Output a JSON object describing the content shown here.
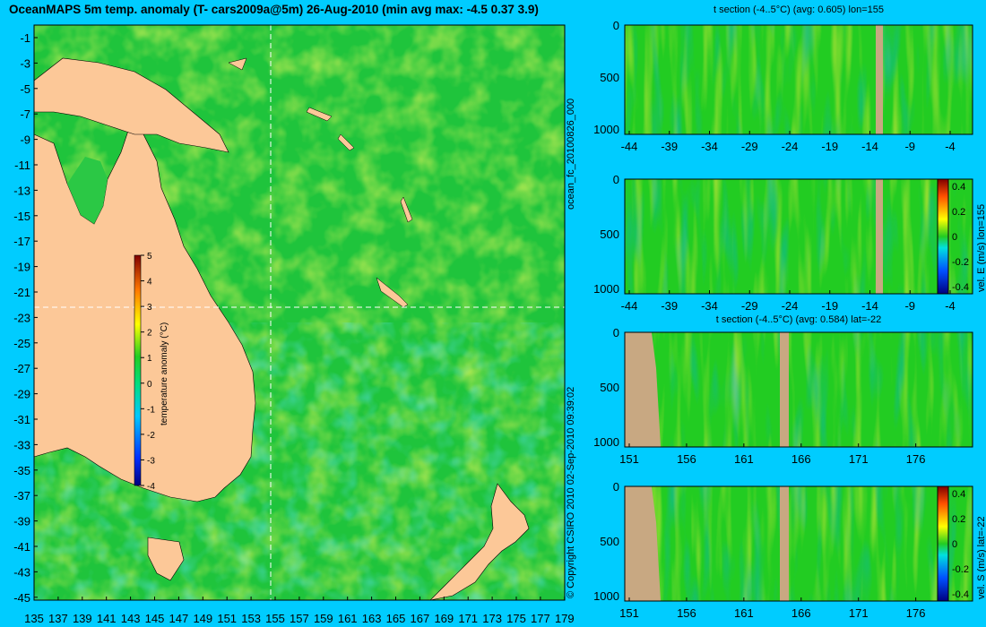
{
  "title": "OceanMAPS 5m temp. anomaly (T- cars2009a@5m) 26-Aug-2010 (min avg max: -4.5 0.37 3.9)",
  "map": {
    "lat_ticks": [
      "-1",
      "-3",
      "-5",
      "-7",
      "-9",
      "-11",
      "-13",
      "-15",
      "-17",
      "-19",
      "-21",
      "-23",
      "-25",
      "-27",
      "-29",
      "-31",
      "-33",
      "-35",
      "-37",
      "-39",
      "-41",
      "-43",
      "-45"
    ],
    "lon_ticks": [
      "135",
      "137",
      "139",
      "141",
      "143",
      "145",
      "147",
      "149",
      "151",
      "153",
      "155",
      "157",
      "159",
      "161",
      "163",
      "165",
      "167",
      "169",
      "171",
      "173",
      "175",
      "177",
      "179"
    ],
    "section_lon": 155,
    "section_lat": -22,
    "colorbar": {
      "label": "temperature anomaly (°C)",
      "ticks": [
        "5",
        "4",
        "3",
        "2",
        "1",
        "0",
        "-1",
        "-2",
        "-3",
        "-4"
      ],
      "range": [
        -4,
        5
      ]
    },
    "colors": {
      "land": "#fcc898",
      "ocean_base": "#22c844",
      "crosshair": "#ffffff"
    }
  },
  "sections": [
    {
      "title": "t section (-4..5°C) (avg: 0.605) lon=155",
      "x_ticks": [
        "-44",
        "-39",
        "-34",
        "-29",
        "-24",
        "-19",
        "-14",
        "-9",
        "-4"
      ],
      "y_ticks": [
        "0",
        "500",
        "1000"
      ]
    },
    {
      "title": "",
      "x_ticks": [
        "-44",
        "-39",
        "-34",
        "-29",
        "-24",
        "-19",
        "-14",
        "-9",
        "-4"
      ],
      "y_ticks": [
        "0",
        "500",
        "1000"
      ],
      "colorbar": {
        "label": "vel. E (m/s) lon=155",
        "ticks": [
          "0.4",
          "0.2",
          "0",
          "-0.2",
          "-0.4"
        ]
      }
    },
    {
      "title": "t section (-4..5°C) (avg: 0.584) lat=-22",
      "x_ticks": [
        "151",
        "156",
        "161",
        "166",
        "171",
        "176"
      ],
      "y_ticks": [
        "0",
        "500",
        "1000"
      ]
    },
    {
      "title": "",
      "x_ticks": [
        "151",
        "156",
        "161",
        "166",
        "171",
        "176"
      ],
      "y_ticks": [
        "0",
        "500",
        "1000"
      ],
      "colorbar": {
        "label": "vel. S (m/s) lat=-22",
        "ticks": [
          "0.4",
          "0.2",
          "0",
          "-0.2",
          "-0.4"
        ]
      }
    }
  ],
  "side_labels": {
    "run_id": "ocean_fc_20100826_000",
    "copyright": "© Copyright CSIRO 2010   02-Sep-2010 09:39:02"
  }
}
